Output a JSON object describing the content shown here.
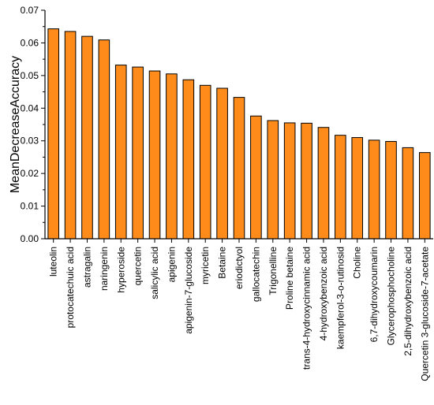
{
  "chart_data": {
    "type": "bar",
    "ylabel": "MeanDecreaseAccuracy",
    "ylim": [
      0,
      0.07
    ],
    "yticks": [
      "0.00",
      "0.01",
      "0.02",
      "0.03",
      "0.04",
      "0.05",
      "0.06",
      "0.07"
    ],
    "bar_color": "#ff8c1a",
    "bar_edge_color": "#000000",
    "categories": [
      "luteolin",
      "protocatechuic acid",
      "astragalin",
      "naringenin",
      "hyperoside",
      "quercetin",
      "salicylic acid",
      "apigenin",
      "apigenin-7-glucoside",
      "myricetin",
      "Betaine",
      "eriodictyol",
      "gallocatechin",
      "Trigonelline",
      "Proline betaine",
      "trans-4-hydroxycinnamic acid",
      "4-hydroxybenzoic acid",
      "kaempferol-3-o-rutinosid",
      "Choline",
      "6,7-dihydroxycoumarin",
      "Glycerophosphocholine",
      "2,5-dihydroxybenzoic acid",
      "Quercetin 3-glucoside-7-acetate"
    ],
    "values": [
      0.0643,
      0.0635,
      0.062,
      0.0609,
      0.0532,
      0.0526,
      0.0514,
      0.0505,
      0.0487,
      0.047,
      0.0461,
      0.0433,
      0.0376,
      0.0362,
      0.0355,
      0.0354,
      0.0341,
      0.0317,
      0.031,
      0.0302,
      0.0298,
      0.0279,
      0.0264
    ]
  }
}
